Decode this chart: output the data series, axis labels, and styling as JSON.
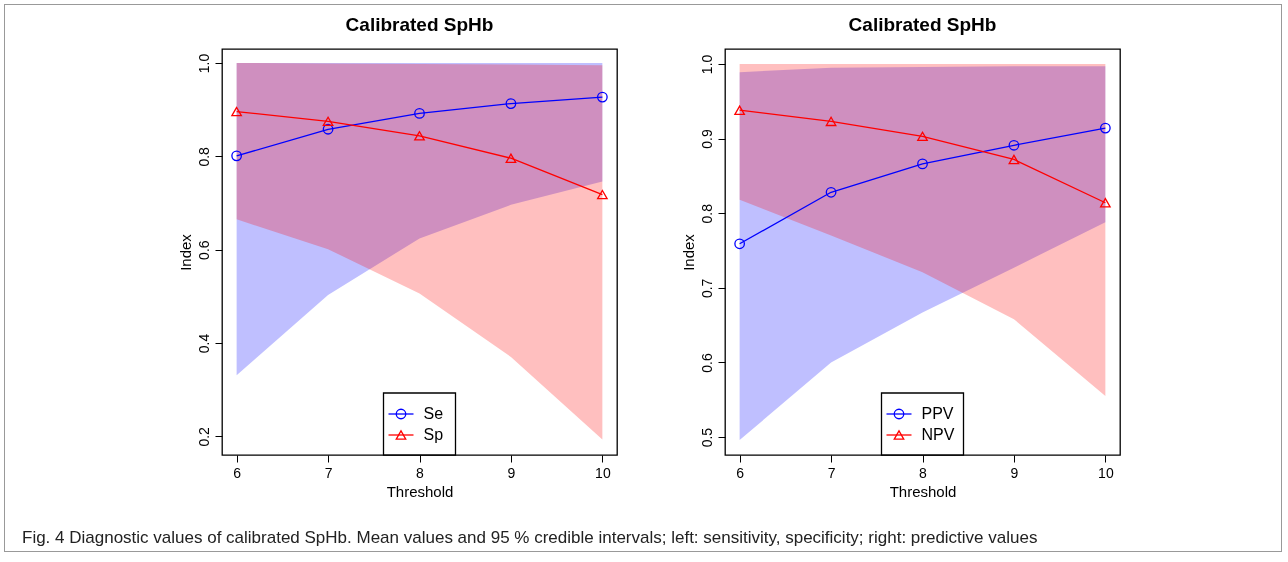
{
  "chart_data": [
    {
      "type": "line",
      "title": "Calibrated SpHb",
      "xlabel": "Threshold",
      "ylabel": "Index",
      "x": [
        6,
        7,
        8,
        9,
        10
      ],
      "xlim": [
        5.84,
        10.16
      ],
      "xticks": [
        6,
        7,
        8,
        9,
        10
      ],
      "ylim": [
        0.16,
        1.03
      ],
      "yticks": [
        0.2,
        0.4,
        0.6,
        0.8,
        {
          "value": 1,
          "label": "1.0"
        }
      ],
      "grid": false,
      "legend": "bottom",
      "annotations": [
        "Fig. 4 Diagnostic values of calibrated SpHb. Mean values and 95 % credible intervals; left: sensitivity, specificity; right: predictive values"
      ],
      "series": [
        {
          "name": "Se",
          "color": "#0000ff",
          "marker": "circle",
          "values": [
            0.801,
            0.858,
            0.892,
            0.913,
            0.927
          ],
          "lower": [
            0.331,
            0.503,
            0.624,
            0.696,
            0.746
          ],
          "upper": [
            1.0,
            1.0,
            1.0,
            1.0,
            1.0
          ]
        },
        {
          "name": "Sp",
          "color": "#ff0000",
          "marker": "triangle",
          "values": [
            0.896,
            0.875,
            0.844,
            0.796,
            0.718
          ],
          "lower": [
            0.665,
            0.601,
            0.506,
            0.37,
            0.193
          ],
          "upper": [
            1.0,
            0.999,
            0.998,
            0.997,
            0.995
          ]
        }
      ]
    },
    {
      "type": "line",
      "title": "Calibrated SpHb",
      "xlabel": "Threshold",
      "ylabel": "Index",
      "x": [
        6,
        7,
        8,
        9,
        10
      ],
      "xlim": [
        5.84,
        10.16
      ],
      "xticks": [
        6,
        7,
        8,
        9,
        10
      ],
      "ylim": [
        0.476,
        1.02
      ],
      "yticks": [
        0.5,
        0.6,
        0.7,
        0.8,
        0.9,
        {
          "value": 1,
          "label": "1.0"
        }
      ],
      "grid": false,
      "legend": "bottom",
      "series": [
        {
          "name": "PPV",
          "color": "#0000ff",
          "marker": "circle",
          "values": [
            0.759,
            0.828,
            0.866,
            0.891,
            0.914
          ],
          "lower": [
            0.496,
            0.6,
            0.667,
            0.727,
            0.788
          ],
          "upper": [
            0.989,
            0.995,
            0.996,
            0.997,
            0.997
          ]
        },
        {
          "name": "NPV",
          "color": "#ff0000",
          "marker": "triangle",
          "values": [
            0.938,
            0.923,
            0.903,
            0.872,
            0.814
          ],
          "lower": [
            0.818,
            0.77,
            0.721,
            0.658,
            0.555
          ],
          "upper": [
            1.0,
            1.0,
            1.0,
            1.0,
            1.0
          ]
        }
      ]
    }
  ]
}
